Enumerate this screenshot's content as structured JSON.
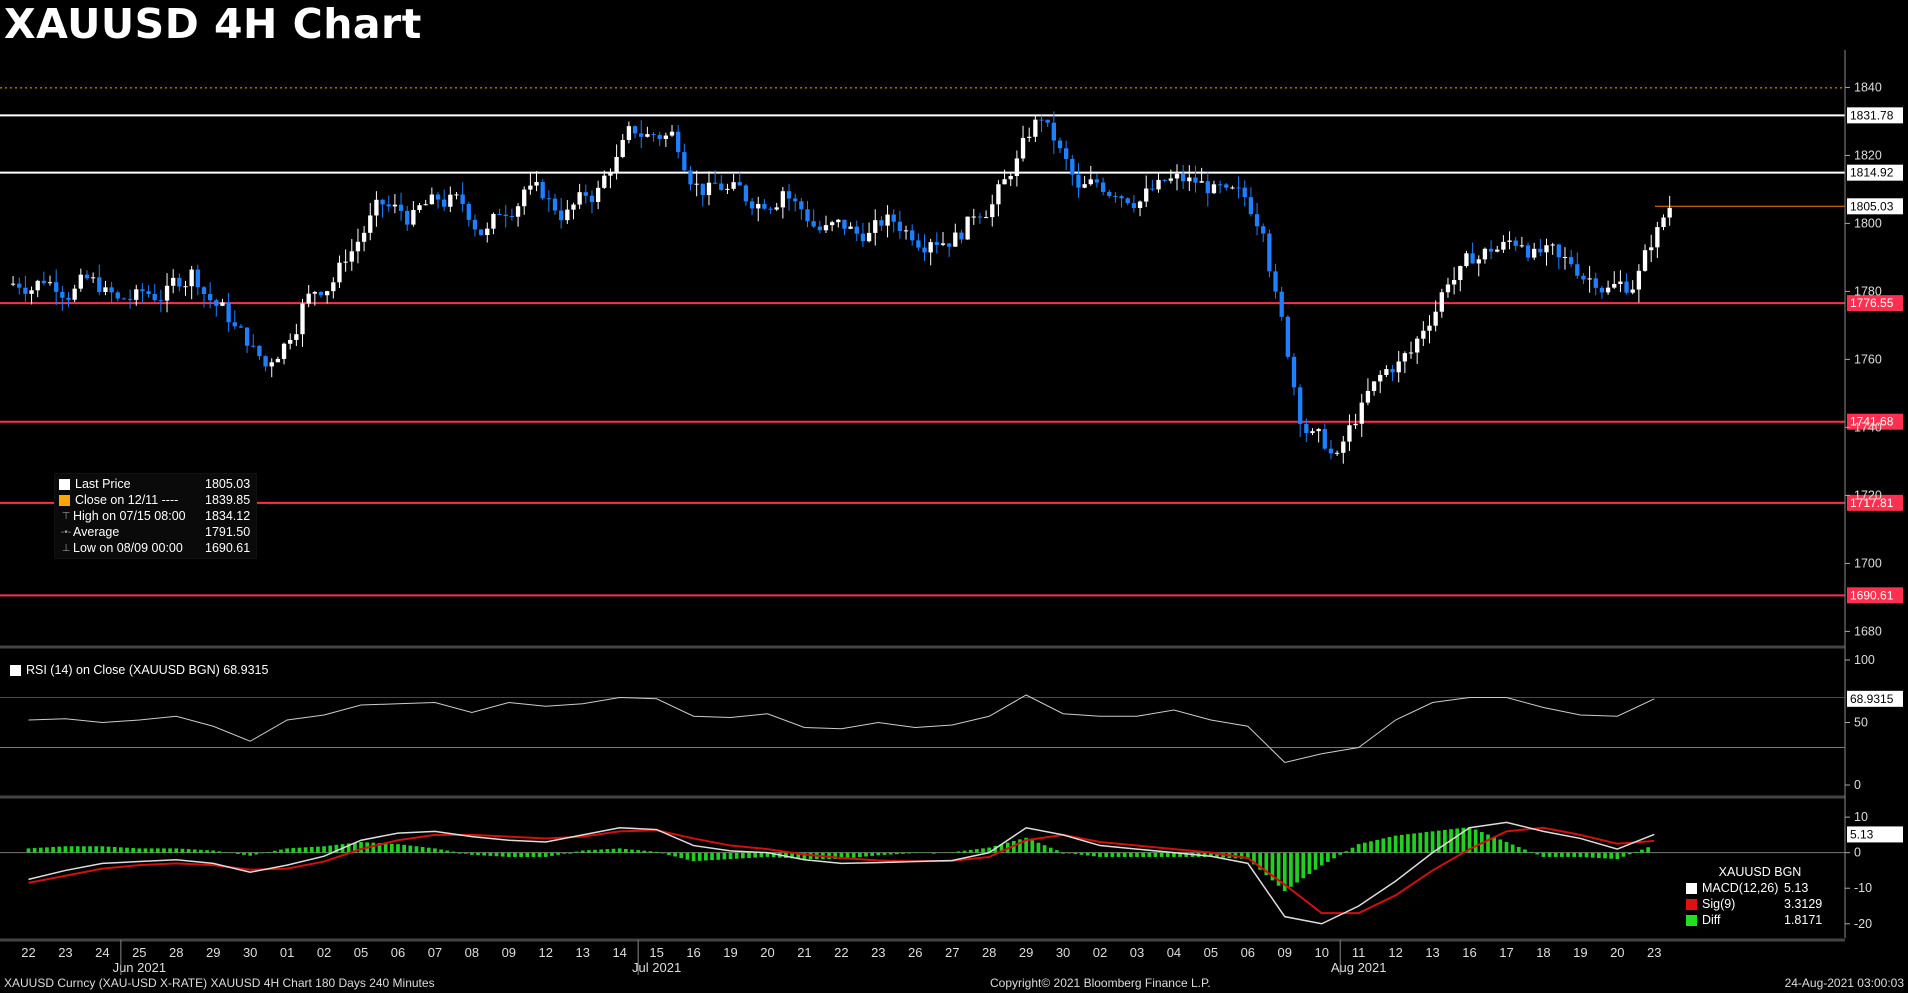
{
  "title": "XAUUSD 4H Chart",
  "footer": {
    "left": "XAUUSD Curncy (XAU-USD X-RATE) XAUUSD 4H Chart 180 Days 240 Minutes",
    "center": "Copyright© 2021 Bloomberg Finance L.P.",
    "right": "24-Aug-2021 03:00:03"
  },
  "colors": {
    "up": "#ffffff",
    "down": "#1e7fff",
    "hline": "#ff2f4f",
    "white_line": "#ffffff",
    "prev_close": "#ffa500"
  },
  "legend": {
    "rows": [
      {
        "label": "Last Price",
        "value": "1805.03",
        "swatch": "#ffffff"
      },
      {
        "label": "Close on 12/11 ----",
        "value": "1839.85",
        "swatch": "#ffa500"
      },
      {
        "label": "High on 07/15 08:00",
        "value": "1834.12",
        "icon": "high-marker-icon"
      },
      {
        "label": "Average",
        "value": "1791.50",
        "icon": "average-line-icon"
      },
      {
        "label": "Low on 08/09 00:00",
        "value": "1690.61",
        "icon": "low-marker-icon"
      }
    ]
  },
  "rsi_legend": "RSI (14)  on Close (XAUUSD BGN) 68.9315",
  "macd_legend": {
    "title": "XAUUSD BGN",
    "rows": [
      {
        "label": "MACD(12,26)",
        "value": "5.13",
        "swatch": "#ffffff"
      },
      {
        "label": "Sig(9)",
        "value": "3.3129",
        "swatch": "#e01010"
      },
      {
        "label": "Diff",
        "value": "1.8171",
        "swatch": "#20e020"
      }
    ]
  },
  "chart_data": {
    "type": "candlestick",
    "price_axis": {
      "ticks": [
        1840,
        1820,
        1800,
        1780,
        1760,
        1740,
        1720,
        1700,
        1680
      ],
      "ylim": [
        1676,
        1851
      ]
    },
    "level_lines": [
      {
        "value": 1831.78,
        "label": "1831.78",
        "color": "#ffffff"
      },
      {
        "value": 1814.92,
        "label": "1814.92",
        "color": "#ffffff"
      },
      {
        "value": 1776.55,
        "label": "1776.55",
        "color": "#ff2f4f"
      },
      {
        "value": 1741.68,
        "label": "1741.68",
        "color": "#ff2f4f"
      },
      {
        "value": 1717.81,
        "label": "1717.81",
        "color": "#ff2f4f"
      },
      {
        "value": 1690.61,
        "label": "1690.61",
        "color": "#ff2f4f"
      }
    ],
    "prev_close": {
      "value": 1839.85
    },
    "last_price": {
      "value": 1805.03,
      "label": "1805.03"
    },
    "x_days": [
      "22",
      "23",
      "24",
      "25",
      "28",
      "29",
      "30",
      "01",
      "02",
      "05",
      "06",
      "07",
      "08",
      "09",
      "12",
      "13",
      "14",
      "15",
      "16",
      "19",
      "20",
      "21",
      "22",
      "23",
      "26",
      "27",
      "28",
      "29",
      "30",
      "02",
      "03",
      "04",
      "05",
      "06",
      "09",
      "10",
      "11",
      "12",
      "13",
      "16",
      "17",
      "18",
      "19",
      "20",
      "23"
    ],
    "month_labels": [
      {
        "label": "Jun 2021",
        "day_index": 3
      },
      {
        "label": "Jul 2021",
        "day_index": 17
      },
      {
        "label": "Aug 2021",
        "day_index": 36
      }
    ],
    "day_closes": [
      1784,
      1782,
      1777,
      1779,
      1785,
      1773,
      1758,
      1775,
      1786,
      1804,
      1801,
      1806,
      1797,
      1810,
      1803,
      1809,
      1828,
      1826,
      1809,
      1808,
      1810,
      1798,
      1797,
      1801,
      1796,
      1799,
      1812,
      1832,
      1809,
      1810,
      1810,
      1812,
      1808,
      1800,
      1744,
      1730,
      1752,
      1762,
      1784,
      1791,
      1795,
      1789,
      1784,
      1782,
      1805.03
    ],
    "rsi": {
      "label": "RSI (14)",
      "value": 68.9315,
      "ticks": [
        100,
        50,
        0
      ],
      "upper": 70,
      "lower": 30,
      "values": [
        52,
        53,
        50,
        52,
        55,
        47,
        35,
        52,
        56,
        64,
        65,
        66,
        58,
        66,
        63,
        65,
        70,
        69,
        55,
        54,
        57,
        46,
        45,
        50,
        46,
        48,
        55,
        72,
        57,
        55,
        55,
        60,
        52,
        47,
        18,
        25,
        30,
        52,
        66,
        70,
        70,
        62,
        56,
        55,
        68.93
      ]
    },
    "macd": {
      "ticks": [
        10,
        0,
        -10,
        -20
      ],
      "macd_value": 5.13,
      "signal": 3.3129,
      "diff": 1.8171,
      "macd_values": [
        -7.5,
        -5,
        -3,
        -2.5,
        -2,
        -3,
        -5.5,
        -3.5,
        -1,
        3.5,
        5.5,
        6,
        4.5,
        3.5,
        3,
        5,
        7,
        6.5,
        2,
        0.5,
        0,
        -2,
        -3,
        -2.8,
        -2.5,
        -2.2,
        0,
        7,
        5,
        2,
        1,
        0,
        -1,
        -3,
        -18,
        -20,
        -15,
        -8,
        0,
        7,
        8.5,
        6,
        4,
        1,
        5.13
      ],
      "signal_values": [
        -8.5,
        -6.5,
        -4.5,
        -3.5,
        -3,
        -3.5,
        -4.8,
        -4.5,
        -2.5,
        1,
        3.5,
        5,
        5,
        4.5,
        4,
        4.5,
        6,
        6.3,
        4,
        2,
        1,
        -0.5,
        -1.5,
        -2.2,
        -2.4,
        -2.3,
        -1.2,
        3.5,
        5,
        3,
        2,
        1,
        0,
        -1.5,
        -9,
        -17,
        -17,
        -12,
        -5,
        1,
        6,
        7,
        5,
        2.5,
        3.31
      ]
    }
  }
}
